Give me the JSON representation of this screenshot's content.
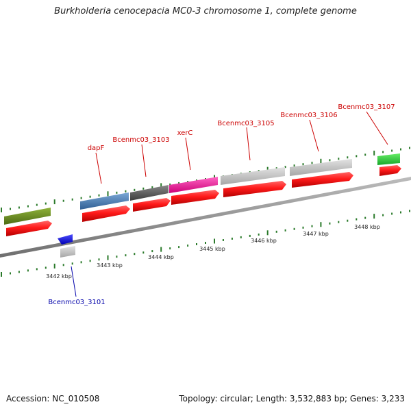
{
  "title": "Burkholderia cenocepacia MC0-3 chromosome 1, complete genome",
  "footer": {
    "accession": "Accession: NC_010508",
    "topology": "Topology: circular; Length: 3,532,883 bp; Genes: 3,233"
  },
  "kbp_labels": [
    "3442 kbp",
    "3443 kbp",
    "3444 kbp",
    "3445 kbp",
    "3446 kbp",
    "3447 kbp",
    "3448 kbp"
  ],
  "gene_labels": [
    {
      "text": "dapF",
      "color": "#cc0000"
    },
    {
      "text": "Bcenmc03_3103",
      "color": "#cc0000"
    },
    {
      "text": "xerC",
      "color": "#cc0000"
    },
    {
      "text": "Bcenmc03_3105",
      "color": "#cc0000"
    },
    {
      "text": "Bcenmc03_3106",
      "color": "#cc0000"
    },
    {
      "text": "Bcenmc03_3107",
      "color": "#cc0000"
    },
    {
      "text": "Bcenmc03_3101",
      "color": "#0000aa"
    }
  ],
  "colors": {
    "backbone": "#8c8c8c",
    "tick": "#2a7a2a",
    "feature_red": "#ee1111",
    "feature_olive": "#6b8e23",
    "feature_blue": "#4a7fb5",
    "feature_darkgray": "#5a5a5a",
    "feature_magenta": "#ee1493",
    "feature_lightgray": "#c0c0c0",
    "feature_green": "#22cc33",
    "feature_strongblue": "#0000ee"
  }
}
